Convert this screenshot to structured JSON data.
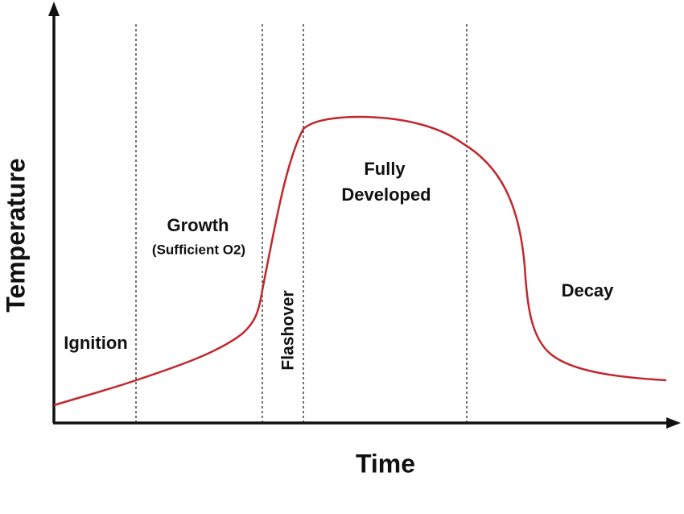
{
  "axes": {
    "x_label": "Time",
    "y_label": "Temperature"
  },
  "phases": [
    {
      "lines": [
        "Ignition"
      ]
    },
    {
      "lines": [
        "Growth",
        "(Sufficient O2)"
      ]
    },
    {
      "lines": [
        "Flashover"
      ]
    },
    {
      "lines": [
        "Fully",
        "Developed"
      ]
    },
    {
      "lines": [
        "Decay"
      ]
    }
  ]
}
